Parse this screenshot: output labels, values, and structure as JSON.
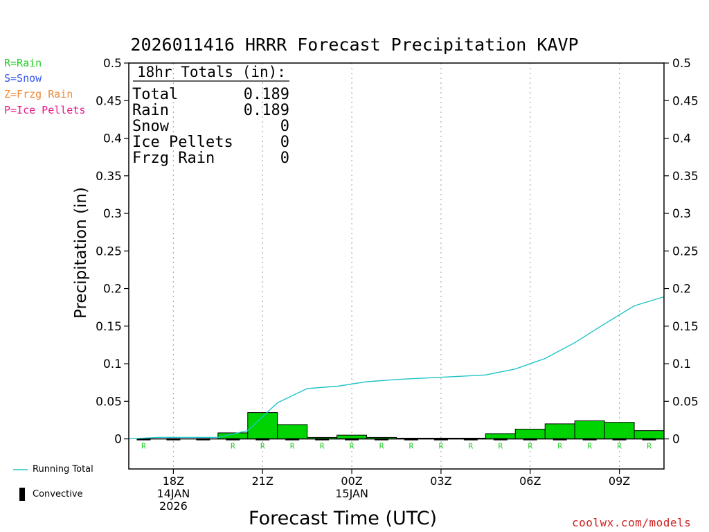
{
  "title": "2026011416 HRRR Forecast Precipitation KAVP",
  "legend_types": [
    {
      "label": "R=Rain",
      "color": "#22cc22"
    },
    {
      "label": "S=Snow",
      "color": "#3355ee"
    },
    {
      "label": "Z=Frzg Rain",
      "color": "#f08c3a"
    },
    {
      "label": "P=Ice Pellets",
      "color": "#e8198c"
    }
  ],
  "totals": {
    "heading": "18hr Totals (in):",
    "rows": [
      {
        "label": "Total",
        "value": "0.189"
      },
      {
        "label": "Rain",
        "value": "0.189"
      },
      {
        "label": "Snow",
        "value": "0"
      },
      {
        "label": "Ice Pellets",
        "value": "0"
      },
      {
        "label": "Frzg Rain",
        "value": "0"
      }
    ]
  },
  "bottom_legend": {
    "running_total_label": "Running Total",
    "convective_label": "Convective"
  },
  "credit": "coolwx.com/models",
  "colors": {
    "running_total_line": "#1fc2c8",
    "bar_fill": "#00d400",
    "type_marker": "#22cc22"
  },
  "chart_data": {
    "type": "bar",
    "title": "2026011416 HRRR Forecast Precipitation KAVP",
    "xlabel": "Forecast Time (UTC)",
    "ylabel": "Precipitation (in)",
    "ylim": [
      -0.04,
      0.5
    ],
    "y_ticks": [
      0,
      0.05,
      0.1,
      0.15,
      0.2,
      0.25,
      0.3,
      0.35,
      0.4,
      0.45,
      0.5
    ],
    "y_tick_labels": [
      "0",
      "0.05",
      "0.1",
      "0.15",
      "0.2",
      "0.25",
      "0.3",
      "0.35",
      "0.4",
      "0.45",
      "0.5"
    ],
    "xlim_forecast_hour": [
      0,
      18
    ],
    "x_ticks": [
      {
        "hour": 1.5,
        "lines": [
          "18Z",
          "14JAN",
          "2026"
        ]
      },
      {
        "hour": 4.5,
        "lines": [
          "21Z"
        ]
      },
      {
        "hour": 7.5,
        "lines": [
          "00Z",
          "15JAN"
        ]
      },
      {
        "hour": 10.5,
        "lines": [
          "03Z"
        ]
      },
      {
        "hour": 13.5,
        "lines": [
          "06Z"
        ]
      },
      {
        "hour": 16.5,
        "lines": [
          "09Z"
        ]
      }
    ],
    "grid": "x-dotted",
    "hourly_bars": {
      "hours": [
        1,
        2,
        3,
        4,
        5,
        6,
        7,
        8,
        9,
        10,
        11,
        12,
        13,
        14,
        15,
        16,
        17,
        18
      ],
      "values": [
        0.0,
        0.0,
        0.0,
        0.008,
        0.035,
        0.019,
        0.002,
        0.005,
        0.002,
        0.001,
        0.001,
        0.001,
        0.007,
        0.013,
        0.02,
        0.024,
        0.022,
        0.011
      ],
      "precip_type": [
        "R",
        "",
        "",
        "R",
        "R",
        "R",
        "R",
        "R",
        "R",
        "R",
        "R",
        "R",
        "R",
        "R",
        "R",
        "R",
        "R",
        "R"
      ]
    },
    "running_total": {
      "hours": [
        0,
        1,
        2,
        3,
        4,
        5,
        6,
        7,
        8,
        9,
        10,
        11,
        12,
        13,
        14,
        15,
        16,
        17,
        18
      ],
      "values": [
        0,
        0.002,
        0.002,
        0.002,
        0.011,
        0.048,
        0.067,
        0.07,
        0.076,
        0.079,
        0.081,
        0.083,
        0.085,
        0.093,
        0.107,
        0.128,
        0.153,
        0.177,
        0.189
      ]
    }
  }
}
